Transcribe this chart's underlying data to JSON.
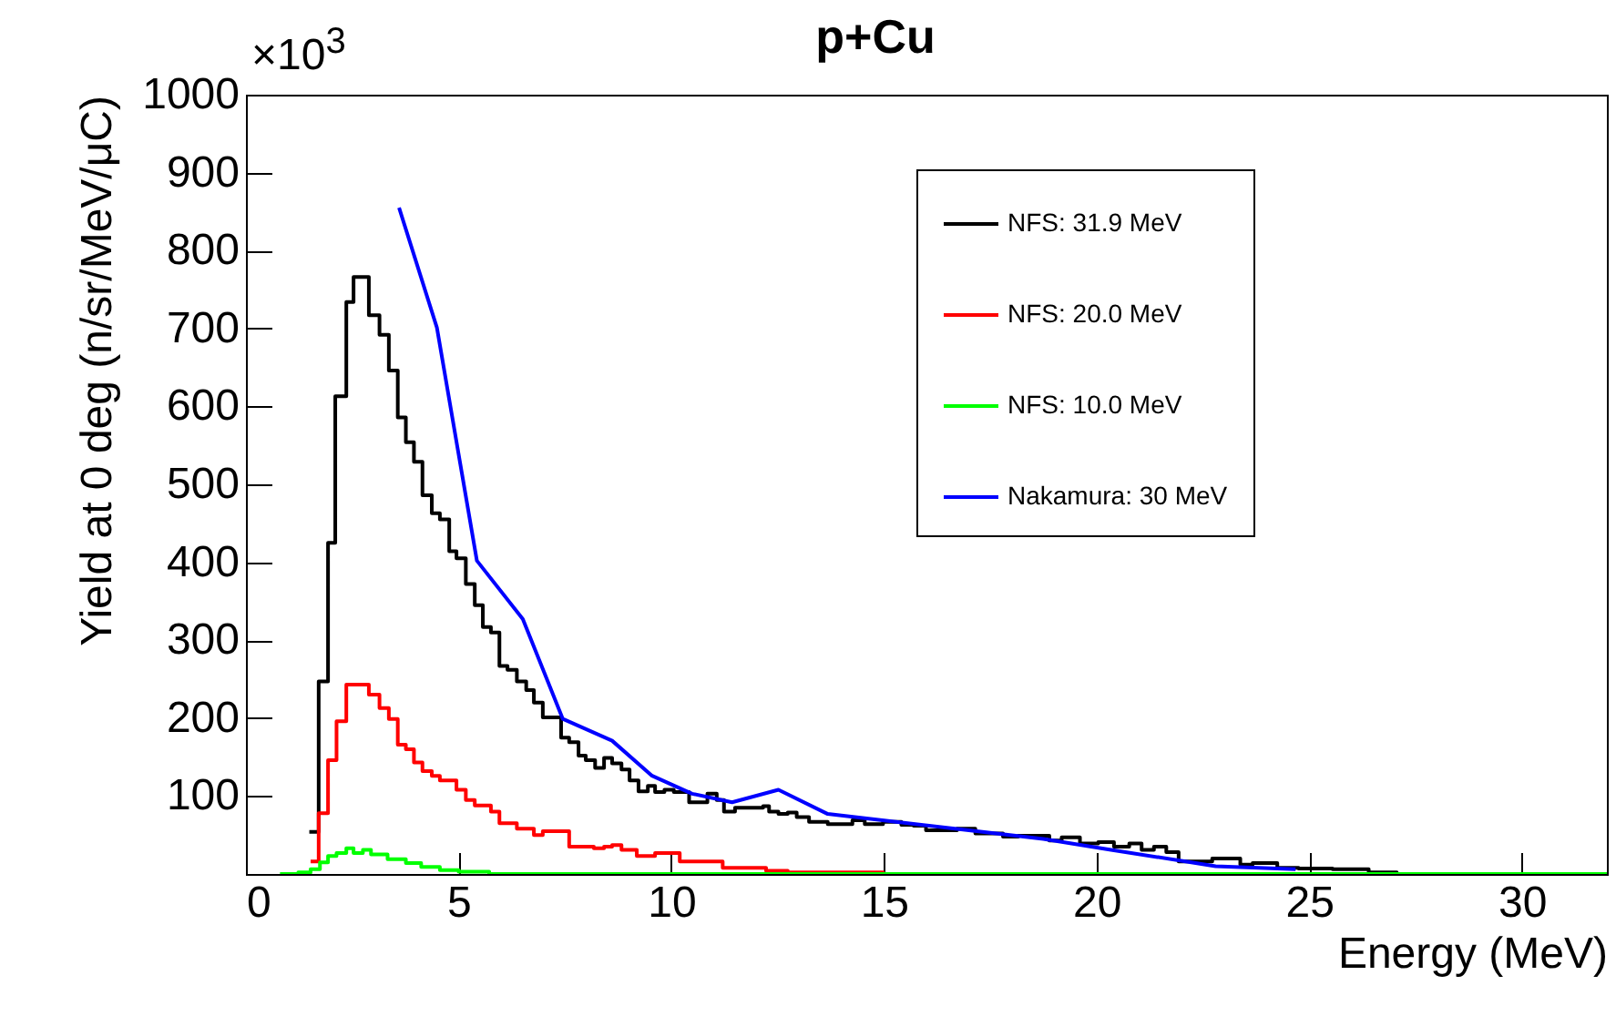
{
  "chart_data": {
    "type": "step",
    "title": "p+Cu",
    "xlabel": "Energy (MeV)",
    "ylabel": "Yield at 0 deg (n/sr/MeV/μC)",
    "annotations": [
      "×10$^{3}$"
    ],
    "xlim": [
      0,
      32
    ],
    "xticks": [
      0,
      5,
      10,
      15,
      20,
      25,
      30
    ],
    "ylim": [
      0,
      1000
    ],
    "yticks": [
      100,
      200,
      300,
      400,
      500,
      600,
      700,
      800,
      900,
      1000
    ],
    "grid": false,
    "legend": "top right",
    "series": [
      {
        "name": "NFS: 31.9 MeV",
        "color": "#000000",
        "x": [
          1.49,
          1.71,
          1.93,
          2.1,
          2.36,
          2.53,
          2.89,
          3.14,
          3.36,
          3.57,
          3.76,
          3.95,
          4.15,
          4.37,
          4.56,
          4.78,
          4.95,
          5.17,
          5.38,
          5.57,
          5.76,
          5.96,
          6.15,
          6.37,
          6.59,
          6.77,
          6.98,
          7.41,
          7.6,
          7.82,
          7.99,
          8.21,
          8.42,
          8.61,
          8.83,
          9.02,
          9.23,
          9.45,
          9.62,
          9.84,
          10.06,
          10.42,
          10.85,
          11.07,
          11.24,
          11.5,
          12.16,
          12.3,
          12.52,
          12.74,
          12.95,
          13.24,
          13.68,
          14.26,
          14.55,
          14.98,
          15.41,
          15.7,
          15.99,
          16.72,
          17.15,
          17.8,
          18.16,
          18.89,
          19.18,
          19.61,
          20.04,
          20.41,
          20.77,
          21.06,
          21.35,
          21.64,
          21.93,
          22.72,
          23.38,
          23.67,
          24.25,
          24.75,
          25.55,
          26.4,
          27.06
        ],
        "values": [
          54,
          247,
          425,
          613,
          734,
          766,
          717,
          692,
          646,
          586,
          554,
          529,
          486,
          463,
          455,
          414,
          405,
          372,
          345,
          317,
          310,
          267,
          262,
          247,
          236,
          220,
          201,
          175,
          169,
          152,
          146,
          136,
          149,
          142,
          134,
          120,
          106,
          113,
          105,
          108,
          105,
          92,
          103,
          95,
          80,
          85,
          87,
          80,
          77,
          79,
          73,
          67,
          64,
          69,
          64,
          67,
          63,
          62,
          56,
          58,
          52,
          48,
          49,
          43,
          47,
          39,
          41,
          35,
          39,
          31,
          35,
          28,
          16,
          20,
          12,
          14,
          8,
          7,
          6,
          2,
          0
        ]
      },
      {
        "name": "NFS: 20.0 MeV",
        "color": "#ff0000",
        "x": [
          1.52,
          1.71,
          1.93,
          2.13,
          2.36,
          2.89,
          3.14,
          3.36,
          3.57,
          3.76,
          3.95,
          4.15,
          4.37,
          4.56,
          4.95,
          5.17,
          5.38,
          5.76,
          5.96,
          6.37,
          6.77,
          6.98,
          7.6,
          8.18,
          8.42,
          8.61,
          8.83,
          9.19,
          9.62,
          10.2,
          11.21,
          12.23,
          12.74,
          14.98
        ],
        "values": [
          16,
          78,
          146,
          196,
          243,
          230,
          213,
          199,
          166,
          160,
          143,
          132,
          126,
          120,
          108,
          95,
          88,
          80,
          65,
          58,
          50,
          55,
          35,
          33,
          35,
          37,
          31,
          23,
          27,
          16,
          8,
          4,
          2,
          0
        ]
      },
      {
        "name": "NFS: 10.0 MeV",
        "color": "#00ff00",
        "x": [
          0.8,
          1.23,
          1.52,
          1.74,
          1.93,
          2.13,
          2.36,
          2.53,
          2.75,
          2.94,
          3.33,
          3.76,
          4.12,
          4.56,
          5.0,
          5.72,
          32
        ],
        "values": [
          0,
          2,
          6,
          15,
          23,
          27,
          33,
          27,
          31,
          25,
          19,
          14,
          9,
          5,
          3,
          0,
          0
        ]
      },
      {
        "name": "Nakamura: 30 MeV",
        "type": "line",
        "color": "#0000ff",
        "x": [
          3.6,
          4.49,
          5.43,
          6.51,
          7.45,
          8.61,
          9.55,
          10.49,
          11.43,
          12.52,
          13.68,
          18.75,
          20.34,
          22.8,
          24.68
        ],
        "values": [
          855,
          701,
          402,
          327,
          199,
          171,
          126,
          103,
          92,
          108,
          77,
          45,
          31,
          10,
          6
        ]
      }
    ]
  }
}
